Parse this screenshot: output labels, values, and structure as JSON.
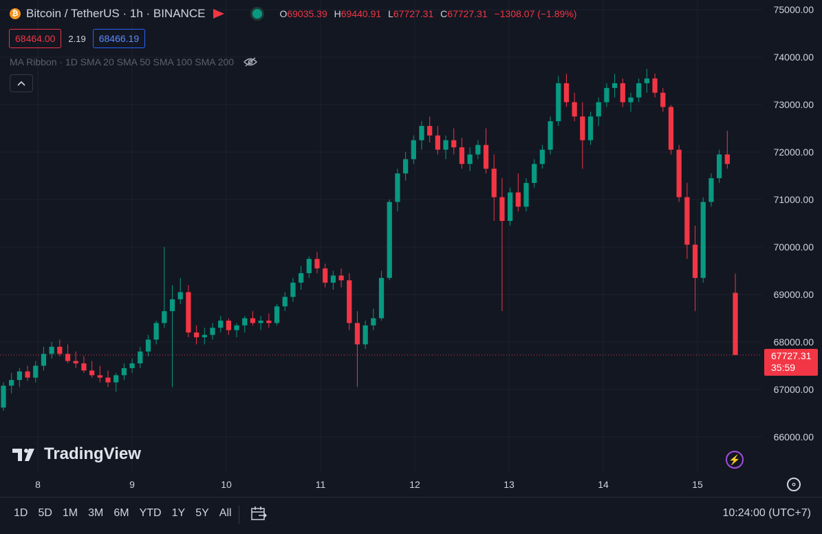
{
  "header": {
    "title": "Bitcoin / TetherUS · 1h · BINANCE",
    "coin_glyph": "₿",
    "ohlc": {
      "o_label": "O",
      "o": "69035.39",
      "h_label": "H",
      "h": "69440.91",
      "l_label": "L",
      "l": "67727.31",
      "c_label": "C",
      "c": "67727.31",
      "change": "−1308.07 (−1.89%)"
    }
  },
  "trade": {
    "sell": "68464.00",
    "spread": "2.19",
    "buy": "68466.19"
  },
  "indicator": {
    "label": "MA Ribbon · 1D SMA 20 SMA 50 SMA 100 SMA 200"
  },
  "last_price": {
    "price": "67727.31",
    "countdown": "35:59"
  },
  "logo": {
    "text": "TradingView"
  },
  "bottom": {
    "ranges": [
      "1D",
      "5D",
      "1M",
      "3M",
      "6M",
      "YTD",
      "1Y",
      "5Y",
      "All"
    ],
    "clock": "10:24:00 (UTC+7)"
  },
  "colors": {
    "up": "#089981",
    "down": "#f23645",
    "background": "#131722",
    "grid": "#1e222d"
  },
  "chart_data": {
    "type": "candlestick",
    "y_ticks": [
      "75000.00",
      "74000.00",
      "73000.00",
      "72000.00",
      "71000.00",
      "70000.00",
      "69000.00",
      "68000.00",
      "67000.00",
      "66000.00"
    ],
    "y_values": [
      75000,
      74000,
      73000,
      72000,
      71000,
      70000,
      69000,
      68000,
      67000,
      66000
    ],
    "x_ticks": [
      "8",
      "9",
      "10",
      "11",
      "12",
      "13",
      "14",
      "15"
    ],
    "ylim": [
      65200,
      75200
    ],
    "candles": [
      [
        66620,
        67150,
        66550,
        67080
      ],
      [
        67080,
        67350,
        66920,
        67200
      ],
      [
        67200,
        67450,
        67050,
        67380
      ],
      [
        67380,
        67500,
        67180,
        67250
      ],
      [
        67250,
        67600,
        67150,
        67500
      ],
      [
        67500,
        67900,
        67400,
        67750
      ],
      [
        67750,
        68000,
        67650,
        67900
      ],
      [
        67900,
        68050,
        67700,
        67750
      ],
      [
        67750,
        67950,
        67550,
        67600
      ],
      [
        67600,
        67800,
        67450,
        67550
      ],
      [
        67550,
        67700,
        67350,
        67400
      ],
      [
        67400,
        67600,
        67250,
        67300
      ],
      [
        67300,
        67500,
        67150,
        67250
      ],
      [
        67250,
        67400,
        67050,
        67150
      ],
      [
        67150,
        67350,
        66950,
        67300
      ],
      [
        67300,
        67550,
        67200,
        67450
      ],
      [
        67450,
        67650,
        67350,
        67550
      ],
      [
        67550,
        67900,
        67450,
        67800
      ],
      [
        67800,
        68150,
        67700,
        68050
      ],
      [
        68050,
        68450,
        67950,
        68400
      ],
      [
        68400,
        70000,
        68300,
        68650
      ],
      [
        68650,
        69200,
        67050,
        68900
      ],
      [
        68900,
        69350,
        68800,
        69050
      ],
      [
        69050,
        69200,
        68100,
        68200
      ],
      [
        68200,
        68350,
        67950,
        68100
      ],
      [
        68100,
        68300,
        67950,
        68150
      ],
      [
        68150,
        68400,
        68050,
        68300
      ],
      [
        68300,
        68550,
        68200,
        68450
      ],
      [
        68450,
        68500,
        68150,
        68250
      ],
      [
        68250,
        68400,
        68100,
        68350
      ],
      [
        68350,
        68550,
        68200,
        68500
      ],
      [
        68500,
        68650,
        68350,
        68400
      ],
      [
        68400,
        68550,
        68250,
        68450
      ],
      [
        68450,
        68600,
        68300,
        68400
      ],
      [
        68400,
        68800,
        68350,
        68750
      ],
      [
        68750,
        69050,
        68650,
        68950
      ],
      [
        68950,
        69350,
        68850,
        69250
      ],
      [
        69250,
        69600,
        69100,
        69450
      ],
      [
        69450,
        69800,
        69350,
        69750
      ],
      [
        69750,
        69900,
        69450,
        69550
      ],
      [
        69550,
        69650,
        69150,
        69250
      ],
      [
        69250,
        69500,
        69100,
        69400
      ],
      [
        69400,
        69550,
        69150,
        69300
      ],
      [
        69300,
        69450,
        68250,
        68400
      ],
      [
        68400,
        68650,
        67050,
        67950
      ],
      [
        67950,
        68450,
        67850,
        68350
      ],
      [
        68350,
        68700,
        68250,
        68500
      ],
      [
        68500,
        69500,
        68450,
        69350
      ],
      [
        69350,
        71000,
        69300,
        70950
      ],
      [
        70950,
        71650,
        70750,
        71550
      ],
      [
        71550,
        72000,
        71400,
        71850
      ],
      [
        71850,
        72350,
        71750,
        72250
      ],
      [
        72250,
        72650,
        72050,
        72550
      ],
      [
        72550,
        72750,
        72200,
        72350
      ],
      [
        72350,
        72550,
        71950,
        72050
      ],
      [
        72050,
        72350,
        71850,
        72250
      ],
      [
        72250,
        72500,
        71950,
        72100
      ],
      [
        72100,
        72300,
        71650,
        71750
      ],
      [
        71750,
        72100,
        71600,
        71950
      ],
      [
        71950,
        72250,
        71850,
        72150
      ],
      [
        72150,
        72500,
        71550,
        71650
      ],
      [
        71650,
        71950,
        70550,
        71050
      ],
      [
        71050,
        71450,
        68650,
        70550
      ],
      [
        70550,
        71250,
        70450,
        71150
      ],
      [
        71150,
        71550,
        70750,
        70850
      ],
      [
        70850,
        71450,
        70750,
        71350
      ],
      [
        71350,
        71850,
        71250,
        71750
      ],
      [
        71750,
        72150,
        71650,
        72050
      ],
      [
        72050,
        72750,
        71950,
        72650
      ],
      [
        72650,
        73600,
        72550,
        73450
      ],
      [
        73450,
        73650,
        72950,
        73050
      ],
      [
        73050,
        73250,
        72650,
        72750
      ],
      [
        72750,
        73050,
        71650,
        72250
      ],
      [
        72250,
        72850,
        72150,
        72750
      ],
      [
        72750,
        73150,
        72550,
        73050
      ],
      [
        73050,
        73450,
        72950,
        73350
      ],
      [
        73350,
        73650,
        73150,
        73450
      ],
      [
        73450,
        73550,
        72950,
        73050
      ],
      [
        73050,
        73250,
        72850,
        73150
      ],
      [
        73150,
        73550,
        73050,
        73450
      ],
      [
        73450,
        73750,
        73250,
        73550
      ],
      [
        73550,
        73650,
        73150,
        73250
      ],
      [
        73250,
        73350,
        72850,
        72950
      ],
      [
        72950,
        72990,
        71950,
        72050
      ],
      [
        72050,
        72150,
        70950,
        71050
      ],
      [
        71050,
        71350,
        69750,
        70050
      ],
      [
        70050,
        70450,
        68650,
        69350
      ],
      [
        69350,
        71050,
        69250,
        70950
      ],
      [
        70950,
        71550,
        70850,
        71450
      ],
      [
        71450,
        72050,
        71350,
        71950
      ],
      [
        71950,
        72450,
        71650,
        71750
      ],
      [
        69035.39,
        69440.91,
        67727.31,
        67727.31
      ]
    ]
  }
}
